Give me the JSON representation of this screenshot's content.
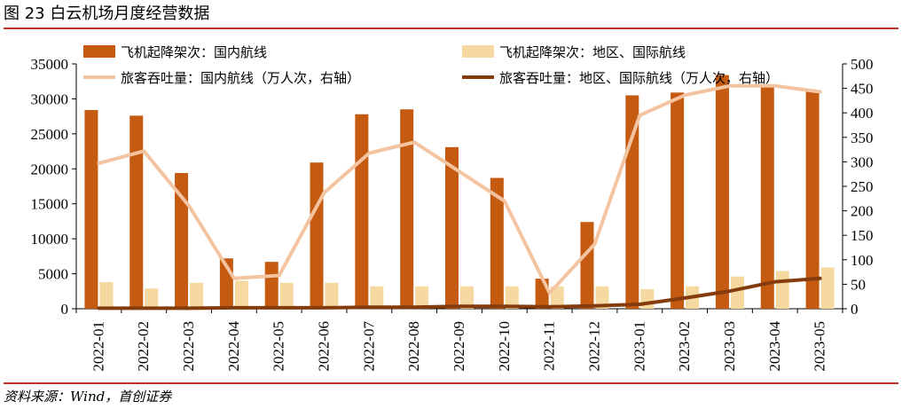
{
  "figure_title": "图 23 白云机场月度经营数据",
  "source": "资料来源：Wind，首创证券",
  "colors": {
    "domestic_flights": "#c55a11",
    "intl_flights": "#f6d9a0",
    "domestic_passengers": "#f4c3a0",
    "intl_passengers": "#843c0c",
    "rule": "#c0302f"
  },
  "chart_data": {
    "type": "bar",
    "categories": [
      "2022-01",
      "2022-02",
      "2022-03",
      "2022-04",
      "2022-05",
      "2022-06",
      "2022-07",
      "2022-08",
      "2022-09",
      "2022-10",
      "2022-11",
      "2022-12",
      "2023-01",
      "2023-02",
      "2023-03",
      "2023-04",
      "2023-05"
    ],
    "ylim": [
      0,
      35000
    ],
    "yticks": [
      "0",
      "5000",
      "10000",
      "15000",
      "20000",
      "25000",
      "30000",
      "35000"
    ],
    "y2lim": [
      0,
      500
    ],
    "y2ticks": [
      "0",
      "50",
      "100",
      "150",
      "200",
      "250",
      "300",
      "350",
      "400",
      "450",
      "500"
    ],
    "legend_position": "top",
    "series": [
      {
        "name": "飞机起降架次：国内航线",
        "type": "bar",
        "axis": "left",
        "values": [
          28400,
          27600,
          19400,
          7200,
          6700,
          20900,
          27800,
          28500,
          23100,
          18700,
          4300,
          12400,
          30500,
          30900,
          33400,
          32100,
          31100
        ]
      },
      {
        "name": "飞机起降架次：地区、国际航线",
        "type": "bar",
        "axis": "left",
        "values": [
          3800,
          2900,
          3700,
          4000,
          3700,
          3700,
          3200,
          3200,
          3200,
          3200,
          3200,
          3200,
          2800,
          3200,
          4600,
          5400,
          5900
        ]
      },
      {
        "name": "旅客吞吐量：国内航线（万人次，右轴）",
        "type": "line",
        "axis": "right",
        "values": [
          297,
          322,
          210,
          62,
          68,
          237,
          318,
          340,
          280,
          220,
          32,
          132,
          395,
          436,
          455,
          455,
          443
        ]
      },
      {
        "name": "旅客吞吐量：地区、国际航线（万人次，右轴）",
        "type": "line",
        "axis": "right",
        "values": [
          1,
          1,
          1,
          2,
          2,
          2,
          3,
          3,
          5,
          5,
          4,
          6,
          9,
          22,
          36,
          55,
          62
        ]
      }
    ]
  }
}
